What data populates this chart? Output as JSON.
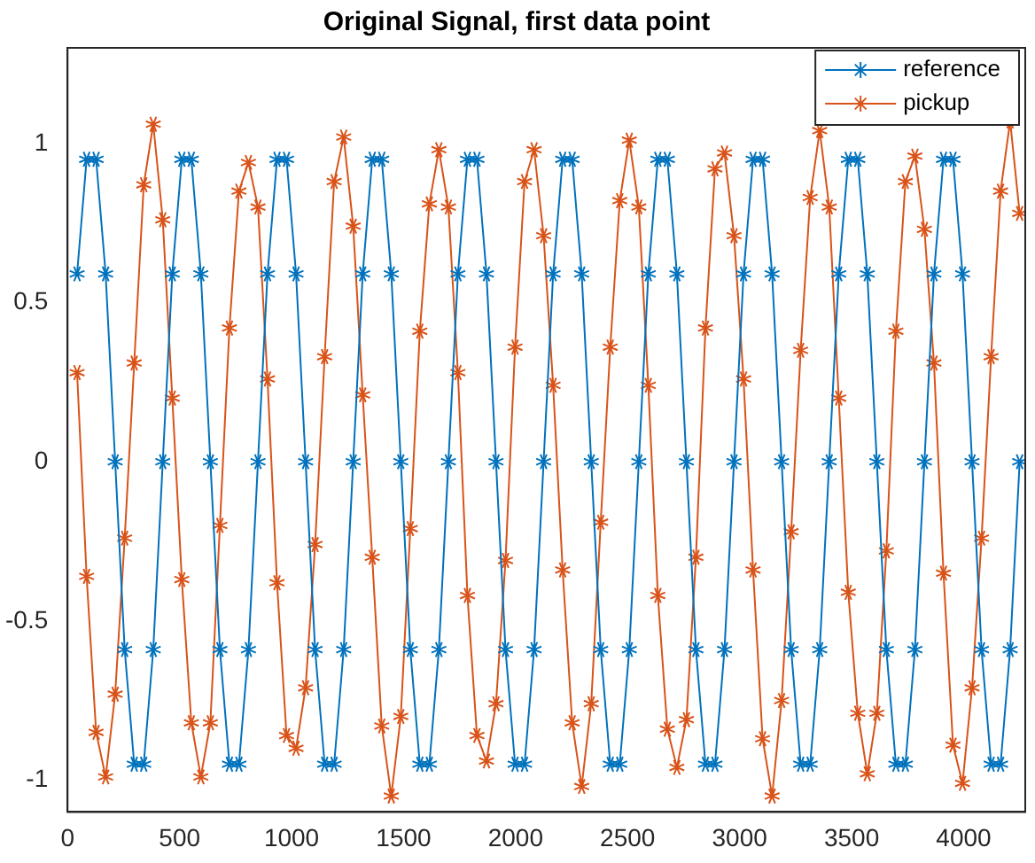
{
  "chart_data": {
    "type": "line",
    "title": "Original Signal, first data point",
    "x": [
      42.5,
      85,
      127.5,
      170,
      212.5,
      255,
      297.5,
      340,
      382.5,
      425,
      467.5,
      510,
      552.5,
      595,
      637.5,
      680,
      722.5,
      765,
      807.5,
      850,
      892.5,
      935,
      977.5,
      1020,
      1062.5,
      1105,
      1147.5,
      1190,
      1232.5,
      1275,
      1317.5,
      1360,
      1402.5,
      1445,
      1487.5,
      1530,
      1572.5,
      1615,
      1657.5,
      1700,
      1742.5,
      1785,
      1827.5,
      1870,
      1912.5,
      1955,
      1997.5,
      2040,
      2082.5,
      2125,
      2167.5,
      2210,
      2252.5,
      2295,
      2337.5,
      2380,
      2422.5,
      2465,
      2507.5,
      2550,
      2592.5,
      2635,
      2677.5,
      2720,
      2762.5,
      2805,
      2847.5,
      2890,
      2932.5,
      2975,
      3017.5,
      3060,
      3102.5,
      3145,
      3187.5,
      3230,
      3272.5,
      3315,
      3357.5,
      3400,
      3442.5,
      3485,
      3527.5,
      3570,
      3612.5,
      3655,
      3697.5,
      3740,
      3782.5,
      3825,
      3867.5,
      3910,
      3952.5,
      3995,
      4037.5,
      4080,
      4122.5,
      4165,
      4207.5,
      4250
    ],
    "series": [
      {
        "name": "reference",
        "color": "#0072bd",
        "values": [
          0.59,
          0.95,
          0.95,
          0.59,
          0,
          -0.59,
          -0.95,
          -0.95,
          -0.59,
          0,
          0.59,
          0.95,
          0.95,
          0.59,
          0,
          -0.59,
          -0.95,
          -0.95,
          -0.59,
          0,
          0.59,
          0.95,
          0.95,
          0.59,
          0,
          -0.59,
          -0.95,
          -0.95,
          -0.59,
          0,
          0.59,
          0.95,
          0.95,
          0.59,
          0,
          -0.59,
          -0.95,
          -0.95,
          -0.59,
          0,
          0.59,
          0.95,
          0.95,
          0.59,
          0,
          -0.59,
          -0.95,
          -0.95,
          -0.59,
          0,
          0.59,
          0.95,
          0.95,
          0.59,
          0,
          -0.59,
          -0.95,
          -0.95,
          -0.59,
          0,
          0.59,
          0.95,
          0.95,
          0.59,
          0,
          -0.59,
          -0.95,
          -0.95,
          -0.59,
          0,
          0.59,
          0.95,
          0.95,
          0.59,
          0,
          -0.59,
          -0.95,
          -0.95,
          -0.59,
          0,
          0.59,
          0.95,
          0.95,
          0.59,
          0,
          -0.59,
          -0.95,
          -0.95,
          -0.59,
          0,
          0.59,
          0.95,
          0.95,
          0.59,
          0,
          -0.59,
          -0.95,
          -0.95,
          -0.59,
          0
        ]
      },
      {
        "name": "pickup",
        "color": "#d95319",
        "values": [
          0.28,
          -0.36,
          -0.85,
          -0.99,
          -0.73,
          -0.24,
          0.31,
          0.87,
          1.06,
          0.76,
          0.2,
          -0.37,
          -0.82,
          -0.99,
          -0.82,
          -0.2,
          0.42,
          0.85,
          0.94,
          0.8,
          0.26,
          -0.38,
          -0.86,
          -0.9,
          -0.71,
          -0.26,
          0.33,
          0.88,
          1.02,
          0.74,
          0.21,
          -0.3,
          -0.83,
          -1.05,
          -0.8,
          -0.21,
          0.41,
          0.81,
          0.98,
          0.8,
          0.28,
          -0.42,
          -0.86,
          -0.94,
          -0.76,
          -0.31,
          0.36,
          0.88,
          0.98,
          0.71,
          0.24,
          -0.34,
          -0.82,
          -1.02,
          -0.76,
          -0.19,
          0.36,
          0.82,
          1.01,
          0.8,
          0.24,
          -0.42,
          -0.84,
          -0.96,
          -0.81,
          -0.3,
          0.42,
          0.92,
          0.97,
          0.71,
          0.26,
          -0.34,
          -0.87,
          -1.05,
          -0.75,
          -0.22,
          0.35,
          0.83,
          1.04,
          0.8,
          0.2,
          -0.41,
          -0.79,
          -0.98,
          -0.79,
          -0.28,
          0.41,
          0.88,
          0.96,
          0.73,
          0.31,
          -0.35,
          -0.89,
          -1.01,
          -0.71,
          -0.24,
          0.33,
          0.85,
          1.07,
          0.78
        ]
      }
    ],
    "xlim": [
      0,
      4275
    ],
    "xticks": [
      0,
      500,
      1000,
      1500,
      2000,
      2500,
      3000,
      3500,
      4000
    ],
    "ylim": [
      -1.1,
      1.3
    ],
    "yticks": [
      -1,
      -0.5,
      0,
      0.5,
      1
    ],
    "grid": false,
    "legend": "top right",
    "marker": "cross",
    "line_style": "solid"
  }
}
